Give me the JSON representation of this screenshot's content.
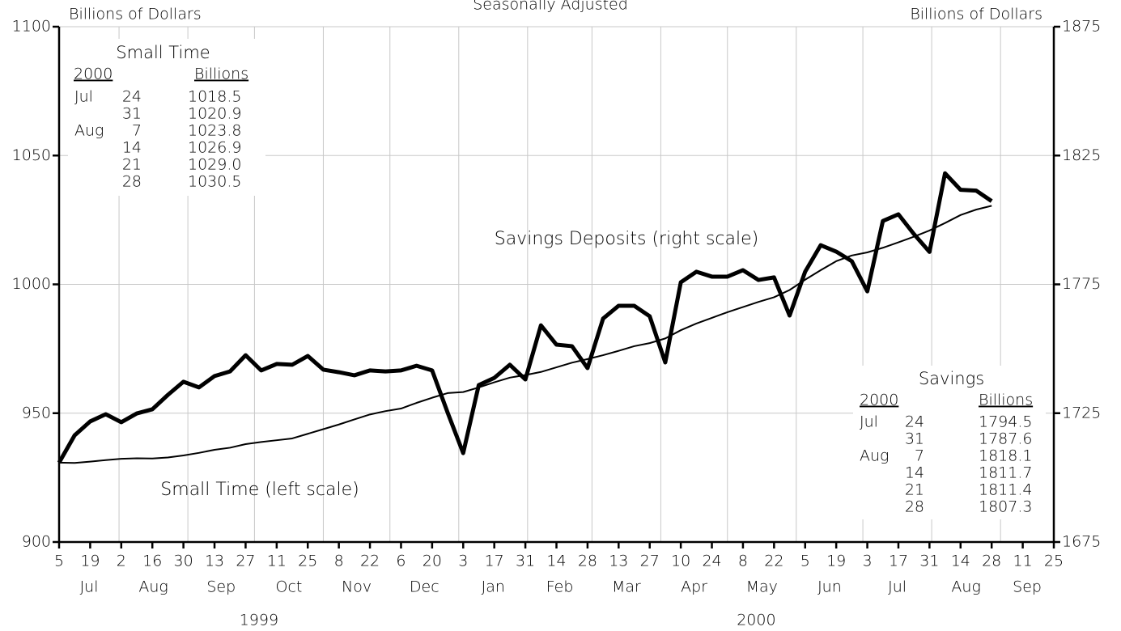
{
  "chart_data": {
    "type": "line",
    "title": "Seasonally Adjusted",
    "ylabel": "Billions of Dollars",
    "y2label": "Billions of Dollars",
    "annotations": [
      "Savings Deposits (right scale)",
      "Small Time (left scale)"
    ],
    "x": [
      "1999-07-05",
      "1999-07-12",
      "1999-07-19",
      "1999-07-26",
      "1999-08-02",
      "1999-08-09",
      "1999-08-16",
      "1999-08-23",
      "1999-08-30",
      "1999-09-06",
      "1999-09-13",
      "1999-09-20",
      "1999-09-27",
      "1999-10-04",
      "1999-10-11",
      "1999-10-18",
      "1999-10-25",
      "1999-11-01",
      "1999-11-08",
      "1999-11-15",
      "1999-11-22",
      "1999-11-29",
      "1999-12-06",
      "1999-12-13",
      "1999-12-20",
      "1999-12-27",
      "2000-01-03",
      "2000-01-10",
      "2000-01-17",
      "2000-01-24",
      "2000-01-31",
      "2000-02-07",
      "2000-02-14",
      "2000-02-21",
      "2000-02-28",
      "2000-03-06",
      "2000-03-13",
      "2000-03-20",
      "2000-03-27",
      "2000-04-03",
      "2000-04-10",
      "2000-04-17",
      "2000-04-24",
      "2000-05-01",
      "2000-05-08",
      "2000-05-15",
      "2000-05-22",
      "2000-05-29",
      "2000-06-05",
      "2000-06-12",
      "2000-06-19",
      "2000-06-26",
      "2000-07-03",
      "2000-07-10",
      "2000-07-17",
      "2000-07-24",
      "2000-07-31",
      "2000-08-07",
      "2000-08-14",
      "2000-08-21",
      "2000-08-28"
    ],
    "series": [
      {
        "name": "Small Time",
        "color": "#000000",
        "values": [
          930.8,
          930.7,
          931.2,
          931.8,
          932.3,
          932.5,
          932.4,
          932.8,
          933.6,
          934.6,
          935.8,
          936.6,
          938.0,
          938.8,
          939.5,
          940.2,
          942.0,
          943.8,
          945.6,
          947.6,
          949.5,
          950.8,
          951.8,
          954.0,
          956.0,
          957.8,
          958.2,
          960.0,
          962.0,
          963.8,
          964.8,
          966.0,
          967.8,
          969.6,
          971.0,
          972.5,
          974.2,
          976.0,
          977.2,
          979.0,
          982.2,
          984.8,
          987.0,
          989.2,
          991.2,
          993.2,
          995.0,
          997.8,
          1001.8,
          1005.5,
          1009.0,
          1011.2,
          1012.4,
          1014.2,
          1016.3,
          1018.5,
          1020.9,
          1023.8,
          1026.9,
          1029.0,
          1030.5
        ]
      },
      {
        "name": "Savings",
        "color": "#000000",
        "axis": "y2",
        "values": [
          1705.8,
          1716.4,
          1721.8,
          1724.6,
          1721.5,
          1724.9,
          1726.5,
          1732.1,
          1737.2,
          1735.0,
          1739.4,
          1741.2,
          1747.5,
          1741.6,
          1744.1,
          1743.8,
          1747.2,
          1741.9,
          1740.9,
          1739.7,
          1741.6,
          1741.2,
          1741.6,
          1743.4,
          1741.6,
          1725.2,
          1709.5,
          1735.9,
          1738.7,
          1743.8,
          1738.1,
          1759.1,
          1751.6,
          1751.0,
          1742.5,
          1761.7,
          1766.7,
          1766.7,
          1762.6,
          1744.7,
          1775.8,
          1779.9,
          1778.0,
          1778.0,
          1780.5,
          1776.7,
          1777.7,
          1762.9,
          1779.9,
          1790.2,
          1787.7,
          1784.0,
          1772.3,
          1799.6,
          1802.2,
          1794.5,
          1787.6,
          1818.1,
          1811.7,
          1811.4,
          1807.3
        ]
      }
    ],
    "xlim": [
      "1999-07-05",
      "2000-09-25"
    ],
    "xticks": [
      {
        "value": "1999-07-05",
        "label": "5"
      },
      {
        "value": "1999-07-19",
        "label": "19"
      },
      {
        "value": "1999-08-02",
        "label": "2"
      },
      {
        "value": "1999-08-16",
        "label": "16"
      },
      {
        "value": "1999-08-30",
        "label": "30"
      },
      {
        "value": "1999-09-13",
        "label": "13"
      },
      {
        "value": "1999-09-27",
        "label": "27"
      },
      {
        "value": "1999-10-11",
        "label": "11"
      },
      {
        "value": "1999-10-25",
        "label": "25"
      },
      {
        "value": "1999-11-08",
        "label": "8"
      },
      {
        "value": "1999-11-22",
        "label": "22"
      },
      {
        "value": "1999-12-06",
        "label": "6"
      },
      {
        "value": "1999-12-20",
        "label": "20"
      },
      {
        "value": "2000-01-03",
        "label": "3"
      },
      {
        "value": "2000-01-17",
        "label": "17"
      },
      {
        "value": "2000-01-31",
        "label": "31"
      },
      {
        "value": "2000-02-14",
        "label": "14"
      },
      {
        "value": "2000-02-28",
        "label": "28"
      },
      {
        "value": "2000-03-13",
        "label": "13"
      },
      {
        "value": "2000-03-27",
        "label": "27"
      },
      {
        "value": "2000-04-10",
        "label": "10"
      },
      {
        "value": "2000-04-24",
        "label": "24"
      },
      {
        "value": "2000-05-08",
        "label": "8"
      },
      {
        "value": "2000-05-22",
        "label": "22"
      },
      {
        "value": "2000-06-05",
        "label": "5"
      },
      {
        "value": "2000-06-19",
        "label": "19"
      },
      {
        "value": "2000-07-03",
        "label": "3"
      },
      {
        "value": "2000-07-17",
        "label": "17"
      },
      {
        "value": "2000-07-31",
        "label": "31"
      },
      {
        "value": "2000-08-14",
        "label": "14"
      },
      {
        "value": "2000-08-28",
        "label": "28"
      },
      {
        "value": "2000-09-11",
        "label": "11"
      },
      {
        "value": "2000-09-25",
        "label": "25"
      }
    ],
    "months": [
      {
        "value": "1999-07",
        "label": "Jul"
      },
      {
        "value": "1999-08",
        "label": "Aug"
      },
      {
        "value": "1999-09",
        "label": "Sep"
      },
      {
        "value": "1999-10",
        "label": "Oct"
      },
      {
        "value": "1999-11",
        "label": "Nov"
      },
      {
        "value": "1999-12",
        "label": "Dec"
      },
      {
        "value": "2000-01",
        "label": "Jan"
      },
      {
        "value": "2000-02",
        "label": "Feb"
      },
      {
        "value": "2000-03",
        "label": "Mar"
      },
      {
        "value": "2000-04",
        "label": "Apr"
      },
      {
        "value": "2000-05",
        "label": "May"
      },
      {
        "value": "2000-06",
        "label": "Jun"
      },
      {
        "value": "2000-07",
        "label": "Jul"
      },
      {
        "value": "2000-08",
        "label": "Aug"
      },
      {
        "value": "2000-09",
        "label": "Sep"
      }
    ],
    "years": [
      "1999",
      "2000"
    ],
    "ylim": [
      900,
      1100
    ],
    "yticks": [
      900,
      950,
      1000,
      1050,
      1100
    ],
    "y2lim": [
      1675,
      1875
    ],
    "y2ticks": [
      1675,
      1725,
      1775,
      1825,
      1875
    ],
    "grid": true,
    "insets": [
      {
        "title": "Small Time",
        "header": [
          "2000",
          "Billions"
        ],
        "rows": [
          {
            "month": "Jul",
            "day": "24",
            "value": "1018.5"
          },
          {
            "day": "31",
            "value": "1020.9"
          },
          {
            "month": "Aug",
            "day": "7",
            "value": "1023.8"
          },
          {
            "day": "14",
            "value": "1026.9"
          },
          {
            "day": "21",
            "value": "1029.0"
          },
          {
            "day": "28",
            "value": "1030.5"
          }
        ]
      },
      {
        "title": "Savings",
        "header": [
          "2000",
          "Billions"
        ],
        "rows": [
          {
            "month": "Jul",
            "day": "24",
            "value": "1794.5"
          },
          {
            "day": "31",
            "value": "1787.6"
          },
          {
            "month": "Aug",
            "day": "7",
            "value": "1818.1"
          },
          {
            "day": "14",
            "value": "1811.7"
          },
          {
            "day": "21",
            "value": "1811.4"
          },
          {
            "day": "28",
            "value": "1807.3"
          }
        ]
      }
    ]
  }
}
